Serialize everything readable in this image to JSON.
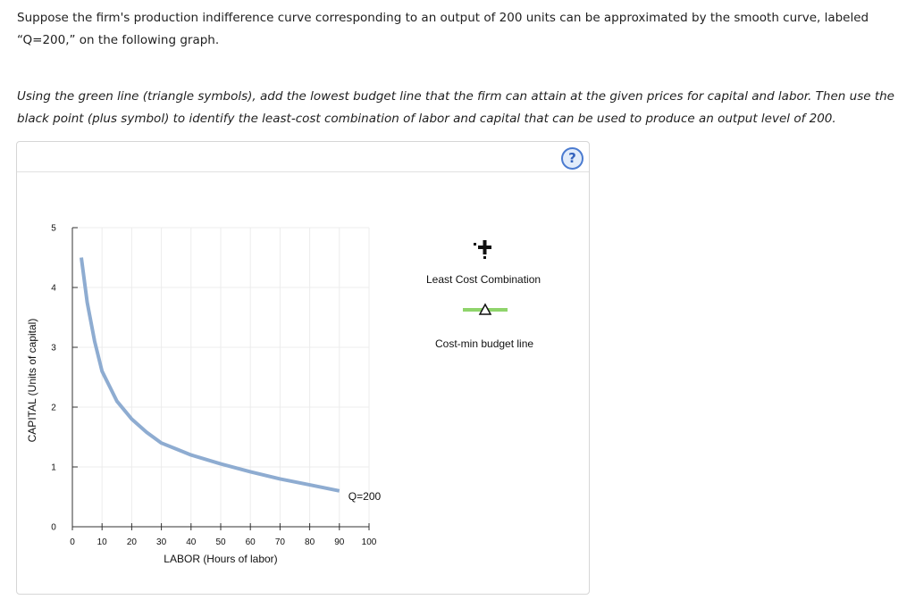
{
  "question": {
    "intro": "Suppose the firm's production indifference curve corresponding to an output of 200 units can be approximated by the smooth curve, labeled “Q=200,” on the following graph.",
    "instruction": "Using the green line (triangle symbols), add the lowest budget line that the firm can attain at the given prices for capital and labor. Then use the black point (plus symbol) to identify the least-cost combination of labor and capital that can be used to produce an output level of 200."
  },
  "panel": {
    "help_label": "?"
  },
  "legend": {
    "least_cost_label": "Least Cost Combination",
    "budget_line_label": "Cost-min budget line"
  },
  "colors": {
    "curve": "#8eacd1",
    "budget_line": "#8fd46b",
    "grid": "#ececec",
    "axis": "#333333"
  },
  "chart_data": {
    "type": "line",
    "xlabel": "LABOR (Hours of labor)",
    "ylabel": "CAPITAL (Units of capital)",
    "xlim": [
      0,
      100
    ],
    "ylim": [
      0,
      5
    ],
    "x_ticks": [
      0,
      10,
      20,
      30,
      40,
      50,
      60,
      70,
      80,
      90,
      100
    ],
    "y_ticks": [
      0,
      1,
      2,
      3,
      4,
      5
    ],
    "grid": true,
    "series": [
      {
        "name": "Q=200",
        "x": [
          3,
          5,
          7.5,
          10,
          12.5,
          15,
          20,
          25,
          30,
          35,
          40,
          50,
          60,
          70,
          80,
          90
        ],
        "y": [
          4.5,
          3.75,
          3.1,
          2.6,
          2.35,
          2.1,
          1.8,
          1.58,
          1.4,
          1.3,
          1.2,
          1.05,
          0.92,
          0.8,
          0.7,
          0.6
        ]
      }
    ],
    "annotations": [
      {
        "text": "Q=200",
        "x": 90,
        "y": 0.6
      }
    ]
  }
}
